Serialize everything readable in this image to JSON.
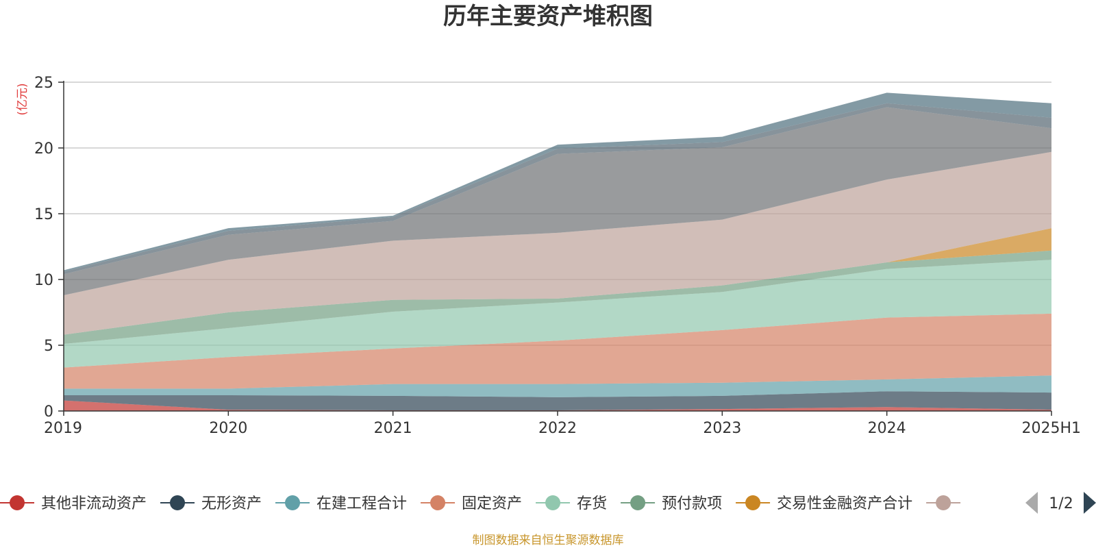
{
  "chart_data": {
    "type": "area",
    "stacked": true,
    "title": "历年主要资产堆积图",
    "ylabel": "(亿元)",
    "xlabel": "",
    "categories": [
      "2019",
      "2020",
      "2021",
      "2022",
      "2023",
      "2024",
      "2025H1"
    ],
    "ylim": [
      0,
      25
    ],
    "yticks": [
      "0",
      "5",
      "10",
      "15",
      "20",
      "25"
    ],
    "grid": true,
    "legend_position": "bottom",
    "legend_page": "1/2",
    "series": [
      {
        "name": "其他非流动资产",
        "color": "#c23531",
        "values": [
          0.8,
          0.1,
          0.05,
          0.05,
          0.15,
          0.3,
          0.1
        ]
      },
      {
        "name": "无形资产",
        "color": "#2f4554",
        "values": [
          0.4,
          1.1,
          1.1,
          1.0,
          1.0,
          1.2,
          1.3
        ]
      },
      {
        "name": "在建工程合计",
        "color": "#61a0a8",
        "values": [
          0.5,
          0.5,
          0.9,
          1.0,
          1.0,
          0.9,
          1.3
        ]
      },
      {
        "name": "固定资产",
        "color": "#d48265",
        "values": [
          1.6,
          2.4,
          2.7,
          3.3,
          4.0,
          4.7,
          4.7
        ]
      },
      {
        "name": "存货",
        "color": "#91c7ae",
        "values": [
          1.8,
          2.2,
          2.8,
          2.9,
          2.9,
          3.7,
          4.1
        ]
      },
      {
        "name": "预付款项",
        "color": "#749f83",
        "values": [
          0.7,
          1.2,
          0.9,
          0.3,
          0.5,
          0.5,
          0.7
        ]
      },
      {
        "name": "交易性金融资产合计",
        "color": "#ca8622",
        "values": [
          0.0,
          0.0,
          0.0,
          0.0,
          0.0,
          0.0,
          1.7
        ]
      },
      {
        "name": "",
        "color": "#bda29a",
        "values": [
          3.0,
          4.0,
          4.5,
          5.0,
          5.0,
          6.3,
          5.8
        ]
      },
      {
        "name": "",
        "color": "#6e7074",
        "values": [
          1.6,
          1.9,
          1.5,
          6.0,
          5.5,
          5.5,
          1.8
        ]
      },
      {
        "name": "",
        "color": "#546570",
        "values": [
          0.2,
          0.3,
          0.3,
          0.4,
          0.4,
          0.3,
          0.8
        ]
      },
      {
        "name": "",
        "color": "#4f6f7e",
        "values": [
          0.1,
          0.2,
          0.1,
          0.3,
          0.4,
          0.8,
          1.1
        ]
      }
    ]
  },
  "footer": {
    "source": "制图数据来自恒生聚源数据库"
  },
  "colors": {
    "page_prev": "#aaaaaa",
    "page_next": "#2f4554",
    "grid": "#cccccc",
    "axis": "#333333"
  }
}
